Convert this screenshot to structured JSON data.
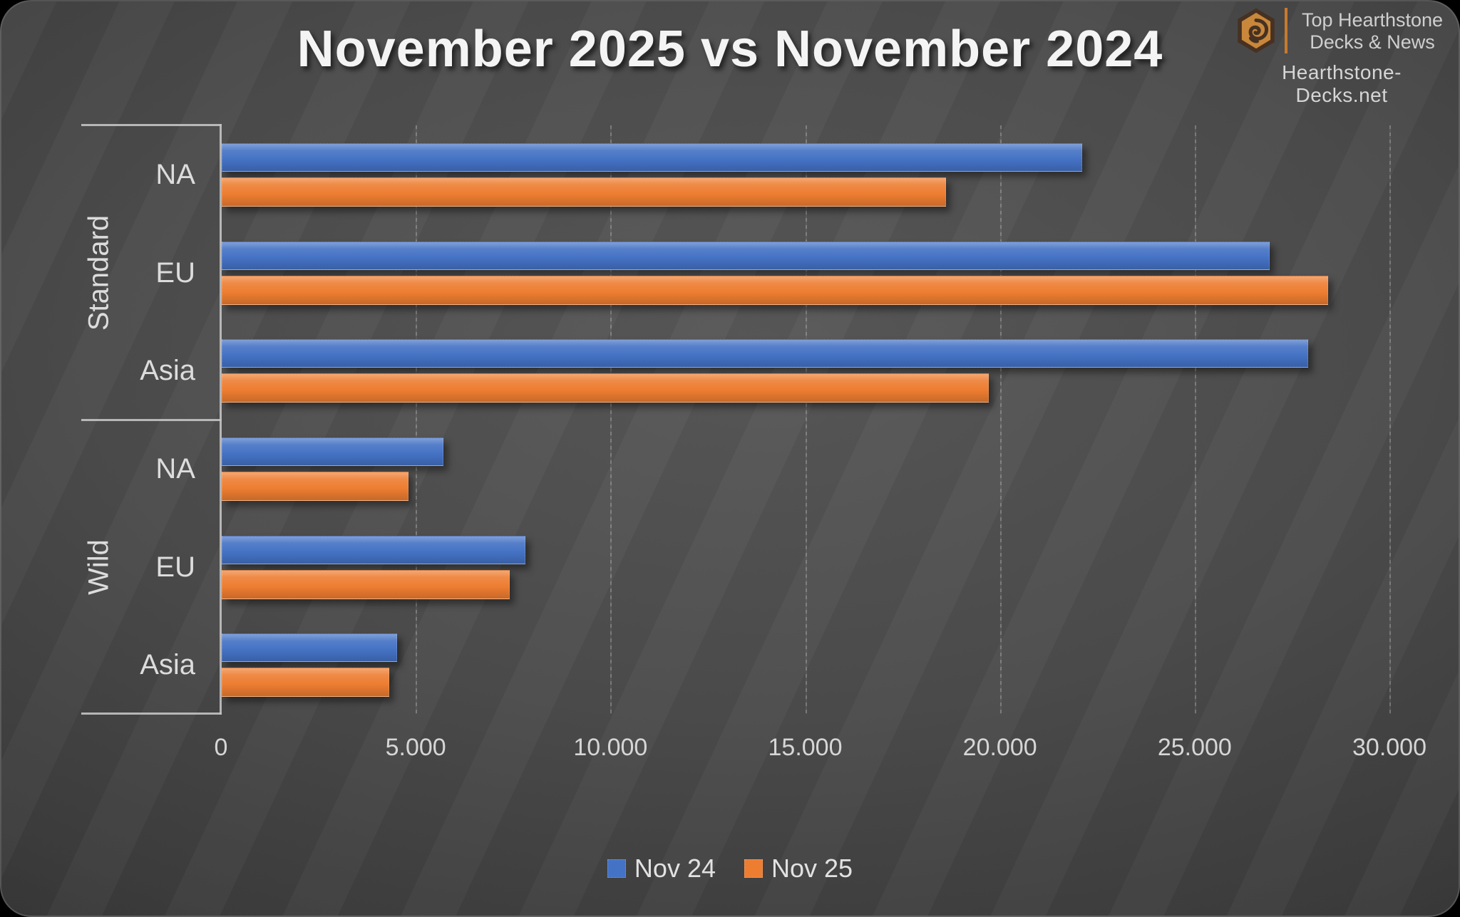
{
  "title": "November 2025 vs November 2024",
  "branding": {
    "line1": "Top Hearthstone",
    "line2": "Decks & News",
    "site": "Hearthstone-Decks.net",
    "logo_icon": "hearthstone-hexagon-spiral-icon",
    "accent_color": "#c87a2c"
  },
  "chart_data": {
    "type": "bar",
    "orientation": "horizontal",
    "title": "November 2025 vs November 2024",
    "groups": [
      "Standard",
      "Wild"
    ],
    "categories": [
      {
        "group": "Standard",
        "label": "NA"
      },
      {
        "group": "Standard",
        "label": "EU"
      },
      {
        "group": "Standard",
        "label": "Asia"
      },
      {
        "group": "Wild",
        "label": "NA"
      },
      {
        "group": "Wild",
        "label": "EU"
      },
      {
        "group": "Wild",
        "label": "Asia"
      }
    ],
    "series": [
      {
        "name": "Nov 24",
        "color": "#4472C4",
        "values": [
          22100,
          26900,
          27900,
          5700,
          7800,
          4500
        ]
      },
      {
        "name": "Nov 25",
        "color": "#ED7D31",
        "values": [
          18600,
          28400,
          19700,
          4800,
          7400,
          4300
        ]
      }
    ],
    "x_axis": {
      "min": 0,
      "max": 30000,
      "tick_step": 5000,
      "tick_labels": [
        "0",
        "5.000",
        "10.000",
        "15.000",
        "20.000",
        "25.000",
        "30.000"
      ]
    },
    "legend_position": "bottom",
    "grid": true
  },
  "colors": {
    "axis_line": "#c3c3c3",
    "gridline": "rgba(255,255,255,0.26)",
    "tick_text": "#d6d6d6",
    "category_text": "#dcdcdc",
    "title_text": "#f4f4f4",
    "background_center": "#4c4c4c",
    "background_edge": "#222222"
  }
}
